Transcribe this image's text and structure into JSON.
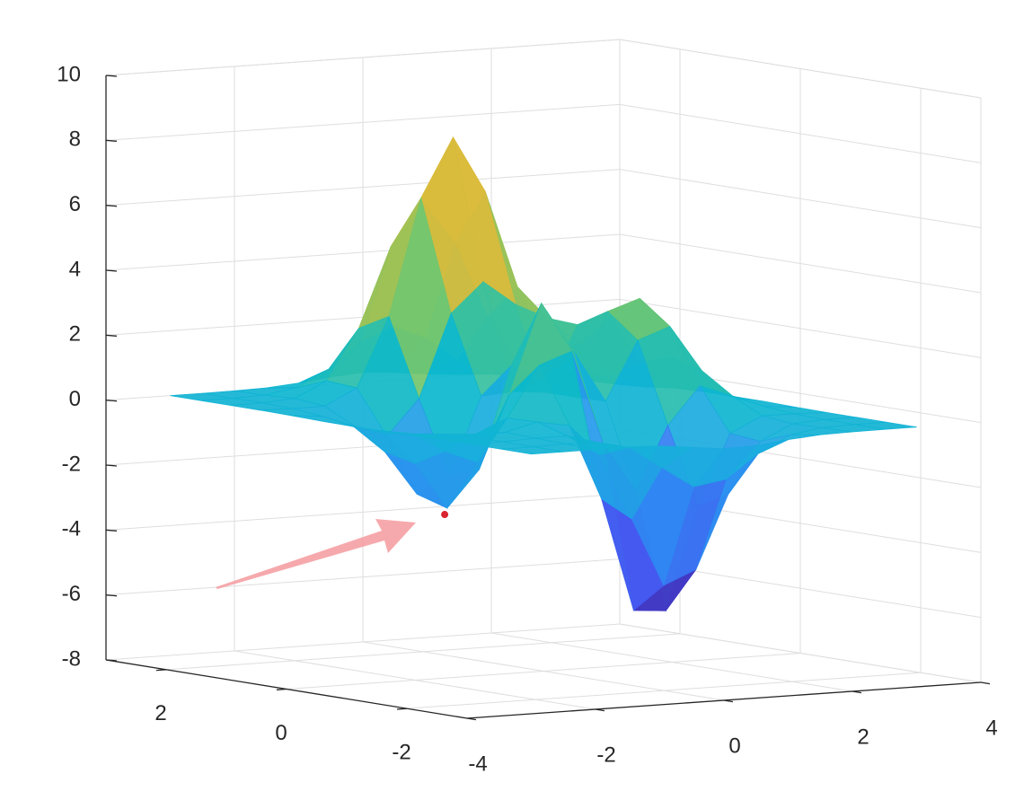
{
  "chart_data": {
    "type": "surface",
    "x": [
      -3,
      -2.5,
      -2,
      -1.5,
      -1,
      -0.5,
      0,
      0.5,
      1,
      1.5,
      2,
      2.5,
      3
    ],
    "y": [
      -3,
      -2.5,
      -2,
      -1.5,
      -1,
      -0.5,
      0,
      0.5,
      1,
      1.5,
      2,
      2.5,
      3
    ],
    "z": [
      [
        0,
        0,
        0,
        0,
        -0.03,
        -0.14,
        -0.25,
        -0.22,
        -0.11,
        -0.03,
        -0.01,
        0,
        0
      ],
      [
        0,
        0,
        0.02,
        0,
        -0.23,
        -0.91,
        -1.57,
        -1.41,
        -0.69,
        -0.18,
        -0.03,
        0,
        0
      ],
      [
        0,
        0.01,
        0.05,
        0.05,
        -0.59,
        -2.64,
        -4.76,
        -4.34,
        -2.1,
        -0.53,
        -0.06,
        0,
        0
      ],
      [
        0,
        0.01,
        0.08,
        0.33,
        0.15,
        -2.18,
        -5.68,
        -5.76,
        -2.63,
        -0.44,
        0.04,
        0.03,
        0
      ],
      [
        -0.01,
        -0.06,
        -0.13,
        0.3,
        1.86,
        2.22,
        -0.72,
        -2.22,
        -0.27,
        0.88,
        0.5,
        0.11,
        0.01
      ],
      [
        -0.03,
        -0.2,
        -0.8,
        -1.21,
        0.8,
        3.55,
        2,
        0.39,
        2.2,
        2.56,
        1.12,
        0.24,
        0.03
      ],
      [
        -0.04,
        -0.3,
        -1.33,
        -2.77,
        -1.65,
        1.48,
        0.98,
        0.37,
        2.94,
        3.27,
        1.41,
        0.3,
        0.03
      ],
      [
        -0.03,
        -0.25,
        -1.12,
        -2.49,
        -2,
        0.39,
        0.46,
        0.37,
        2.38,
        2.56,
        1.09,
        0.23,
        0.03
      ],
      [
        -0.01,
        -0.11,
        -0.48,
        -0.86,
        0.23,
        2.79,
        3.69,
        2.93,
        2.43,
        1.58,
        0.58,
        0.11,
        0.01
      ],
      [
        0,
        -0.02,
        -0.01,
        0.48,
        2.61,
        6.19,
        7.99,
        6.25,
        3.25,
        1.18,
        0.29,
        0.05,
        0
      ],
      [
        0,
        0.01,
        0.08,
        0.55,
        2.1,
        4.55,
        5.86,
        4.56,
        2.21,
        0.68,
        0.13,
        0.02,
        0
      ],
      [
        0,
        0,
        0.03,
        0.19,
        0.69,
        1.47,
        1.88,
        1.47,
        0.7,
        0.2,
        0.04,
        0,
        0
      ],
      [
        0,
        0,
        0.01,
        0.03,
        0.11,
        0.23,
        0.3,
        0.23,
        0.11,
        0.03,
        0.01,
        0,
        0
      ]
    ],
    "xlim": [
      -4,
      4
    ],
    "ylim": [
      -3,
      3
    ],
    "zlim": [
      -8,
      10
    ],
    "xticks": [
      -4,
      -2,
      0,
      2,
      4
    ],
    "yticks": [
      -2,
      0,
      2
    ],
    "zticks": [
      -8,
      -6,
      -4,
      -2,
      0,
      2,
      4,
      6,
      8,
      10
    ],
    "grid": true,
    "colormap": "parula",
    "marker": {
      "x": -1.35,
      "y": 0.2,
      "z": -3.05,
      "color": "#d9232e"
    }
  }
}
